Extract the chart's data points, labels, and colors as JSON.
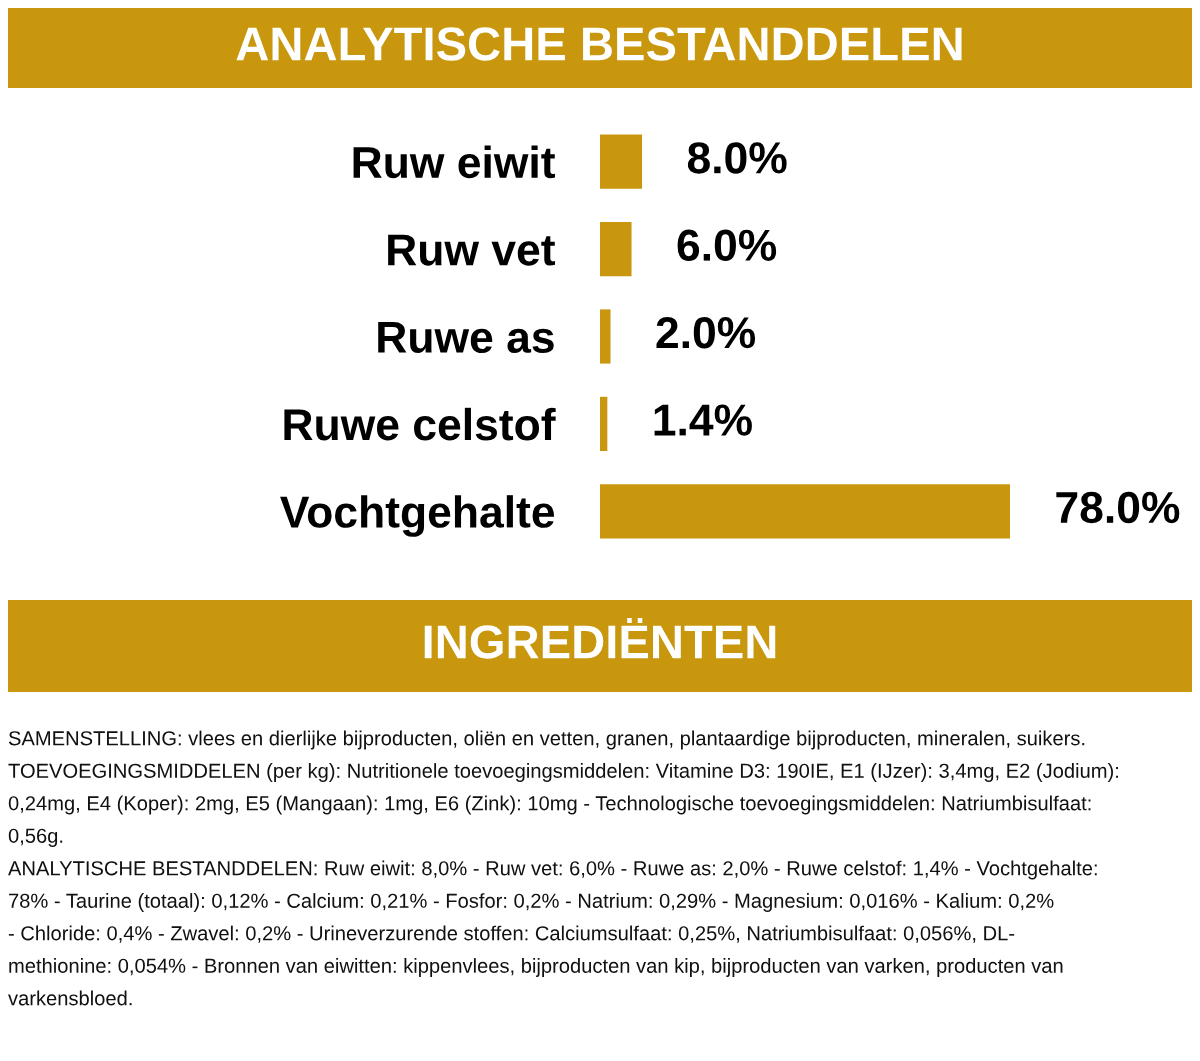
{
  "chart_data": {
    "type": "bar",
    "orientation": "horizontal",
    "title": "ANALYTISCHE BESTANDDELEN",
    "categories": [
      "Ruw eiwit",
      "Ruw vet",
      "Ruwe as",
      "Ruwe celstof",
      "Vochtgehalte"
    ],
    "values": [
      8.0,
      6.0,
      2.0,
      1.4,
      78.0
    ],
    "value_labels": [
      "8.0%",
      "6.0%",
      "2.0%",
      "1.4%",
      "78.0%"
    ],
    "color": "#c9970e",
    "annotations": [
      "INGREDIËNTEN",
      "SAMENSTELLING: vlees en dierlijke bijproducten, oliën en vetten, granen, plantaardige bijproducten, mineralen, suikers.",
      "TOEVOEGINGSMIDDELEN (per kg): Nutritionele toevoegingsmiddelen: Vitamine D3: 190IE, E1 (IJzer): 3,4mg, E2 (Jodium):",
      "0,24mg, E4 (Koper): 2mg, E5 (Mangaan): 1mg, E6 (Zink): 10mg - Technologische toevoegingsmiddelen: Natriumbisulfaat:",
      "0,56g.",
      "ANALYTISCHE BESTANDDELEN: Ruw eiwit: 8,0% - Ruw vet: 6,0% - Ruwe as: 2,0% - Ruwe celstof: 1,4% - Vochtgehalte:",
      "78% - Taurine (totaal): 0,12% - Calcium: 0,21% - Fosfor: 0,2% - Natrium: 0,29% - Magnesium: 0,016% - Kalium: 0,2%",
      "- Chloride: 0,4% - Zwavel: 0,2% - Urineverzurende stoffen: Calciumsulfaat: 0,25%, Natriumbisulfaat: 0,056%, DL-",
      "methionine: 0,054% - Bronnen van eiwitten: kippenvlees, bijproducten van kip, bijproducten van varken, producten van",
      "varkensbloed."
    ]
  }
}
